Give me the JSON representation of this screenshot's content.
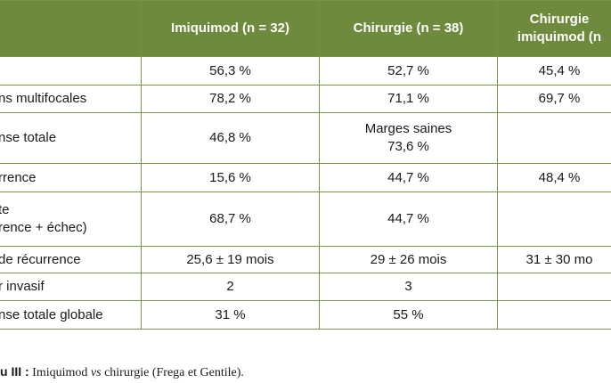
{
  "table": {
    "headers": [
      "",
      "Imiquimod (n = 32)",
      "Chirurgie (n = 38)",
      "Chirurgie",
      "imiquimod (n"
    ],
    "rows": [
      {
        "label": "",
        "c1": "56,3 %",
        "c2": "52,7 %",
        "c3": "45,4 %"
      },
      {
        "label": "ns multifocales",
        "c1": "78,2 %",
        "c2": "71,1 %",
        "c3": "69,7 %"
      },
      {
        "label": "nse totale",
        "c1": "46,8 %",
        "c2a": "Marges saines",
        "c2b": "73,6 %",
        "c3": ""
      },
      {
        "label": "rrence",
        "c1": "15,6 %",
        "c2": "44,7 %",
        "c3": "48,4 %"
      },
      {
        "label_a": "te",
        "label_b": "rence + échec)",
        "c1": "68,7 %",
        "c2": "44,7 %",
        "c3": ""
      },
      {
        "label": "de récurrence",
        "c1": "25,6 ± 19 mois",
        "c2": "29 ± 26 mois",
        "c3": "31 ± 30 mo"
      },
      {
        "label": "r invasif",
        "c1": "2",
        "c2": "3",
        "c3": ""
      },
      {
        "label": "nse totale globale",
        "c1": "31 %",
        "c2": "55 %",
        "c3": ""
      }
    ]
  },
  "caption": {
    "lead": "u III :",
    "part1": " Imiquimod ",
    "italic": "vs",
    "part2": " chirurgie (Frega et Gentile)."
  }
}
